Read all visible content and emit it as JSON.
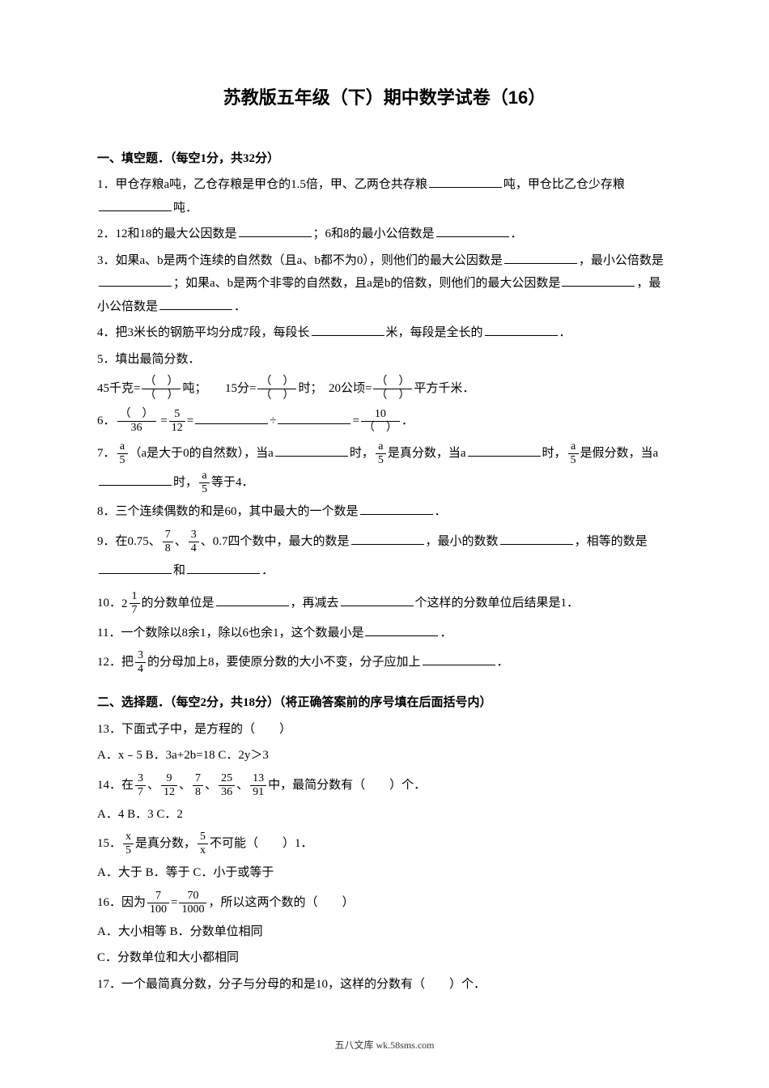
{
  "title": "苏教版五年级（下）期中数学试卷（16）",
  "section1": {
    "header": "一、填空题．（每空1分，共32分）",
    "q1a": "1．甲仓存粮a吨，乙仓存粮是甲仓的1.5倍，甲、乙两仓共存粮",
    "q1b": "吨，甲仓比乙仓少存粮",
    "q1c": "吨．",
    "q2a": "2．12和18的最大公因数是",
    "q2b": "；6和8的最小公倍数是",
    "q2c": "．",
    "q3a": "3．如果a、b是两个连续的自然数（且a、b都不为0），则他们的最大公因数是",
    "q3b": "，最小公倍数是",
    "q3c": "；如果a、b是两个非零的自然数，且a是b的倍数，则他们的最大公因数是",
    "q3d": "，最小公倍数是",
    "q3e": "．",
    "q4a": "4．把3米长的钢筋平均分成7段，每段长",
    "q4b": "米，每段是全长的",
    "q4c": "．",
    "q5": "5．填出最简分数．",
    "q5a": "45千克=",
    "q5b": "吨；　　15分=",
    "q5c": "时；　20公顷=",
    "q5d": "平方千米．",
    "q6a": "6．",
    "q6b": " =",
    "q6c": "=",
    "q6d": "÷",
    "q6e": "=",
    "q6f": "．",
    "q7a": "7．",
    "q7b": "（a是大于0的自然数），当a",
    "q7c": "时，",
    "q7d": "是真分数，当a",
    "q7e": "时，",
    "q7f": "是假分数，当a",
    "q7g": "时，",
    "q7h": "等于4．",
    "q8a": "8．三个连续偶数的和是60，其中最大的一个数是",
    "q8b": "．",
    "q9a": "9．在0.75、",
    "q9b": "、",
    "q9c": "、0.7四个数中，最大的数是",
    "q9d": "，最小的数数",
    "q9e": "，相等的数是",
    "q9f": "和",
    "q9g": "．",
    "q10a": "10．",
    "q10b": "的分数单位是",
    "q10c": "，再减去",
    "q10d": "个这样的分数单位后结果是1．",
    "q11a": "11．一个数除以8余1，除以6也余1，这个数最小是",
    "q11b": "．",
    "q12a": "12．把",
    "q12b": "的分母加上8，要使原分数的大小不变，分子应加上",
    "q12c": "．"
  },
  "section2": {
    "header": "二、选择题．（每空2分，共18分）（将正确答案前的序号填在后面括号内）",
    "q13": "13．下面式子中，是方程的（　　）",
    "q13opts": "A．x﹣5 B．3a+2b=18 C．2y＞3",
    "q14a": "14．在",
    "q14b": "、",
    "q14c": "、",
    "q14d": "、",
    "q14e": "、",
    "q14f": "中，最简分数有（　　）个．",
    "q14opts": "A．4 B．3 C．2",
    "q15a": "15．",
    "q15b": "是真分数，",
    "q15c": "不可能（　　）1．",
    "q15opts": "A．大于 B．等于 C．小于或等于",
    "q16a": "16．因为",
    "q16b": "=",
    "q16c": "，所以这两个数的（　　）",
    "q16opt1": "A．大小相等 B．分数单位相同",
    "q16opt2": "C．分数单位和大小都相同",
    "q17": "17．一个最简真分数，分子与分母的和是10，这样的分数有（　　）个．"
  },
  "fractions": {
    "paren_num": "（　）",
    "paren_den": "（　）",
    "f_36": "36",
    "f_5": "5",
    "f_12": "12",
    "f_10": "10",
    "f_a": "a",
    "f_5b": "5",
    "f_7": "7",
    "f_8": "8",
    "f_3": "3",
    "f_4": "4",
    "f_1": "1",
    "f_2whole": "2",
    "f_9": "9",
    "f_25": "25",
    "f_13": "13",
    "f_91": "91",
    "f_x": "x",
    "f_70": "70",
    "f_100": "100",
    "f_1000": "1000"
  },
  "footer": "五八文库 wk.58sms.com"
}
